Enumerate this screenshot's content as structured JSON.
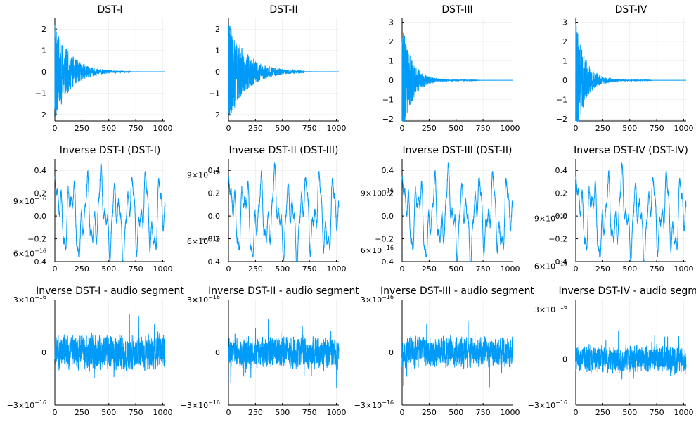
{
  "series_color": "#009af9",
  "chart_data": [
    {
      "type": "line",
      "title": "DST-I",
      "x_range": [
        0,
        1023
      ],
      "xlim": [
        0,
        1023
      ],
      "ylim": [
        -2.3,
        2.5
      ],
      "x_ticks": [
        {
          "label": "0",
          "value": 0
        },
        {
          "label": "250",
          "value": 250
        },
        {
          "label": "500",
          "value": 500
        },
        {
          "label": "750",
          "value": 750
        },
        {
          "label": "1000",
          "value": 1000
        }
      ],
      "y_ticks": [
        {
          "label": "−2",
          "value": -2
        },
        {
          "label": "−1",
          "value": -1
        },
        {
          "label": "0",
          "value": 0
        },
        {
          "label": "1",
          "value": 1
        },
        {
          "label": "2",
          "value": 2
        }
      ],
      "signal": {
        "kind": "spectrum",
        "seed": 11,
        "peak": 2.3,
        "decay": 140
      }
    },
    {
      "type": "line",
      "title": "DST-II",
      "x_range": [
        0,
        1023
      ],
      "xlim": [
        0,
        1023
      ],
      "ylim": [
        -2.3,
        2.5
      ],
      "x_ticks": [
        {
          "label": "0",
          "value": 0
        },
        {
          "label": "250",
          "value": 250
        },
        {
          "label": "500",
          "value": 500
        },
        {
          "label": "750",
          "value": 750
        },
        {
          "label": "1000",
          "value": 1000
        }
      ],
      "y_ticks": [
        {
          "label": "−2",
          "value": -2
        },
        {
          "label": "−1",
          "value": -1
        },
        {
          "label": "0",
          "value": 0
        },
        {
          "label": "1",
          "value": 1
        },
        {
          "label": "2",
          "value": 2
        }
      ],
      "signal": {
        "kind": "spectrum",
        "seed": 23,
        "peak": 2.3,
        "decay": 170
      }
    },
    {
      "type": "line",
      "title": "DST-III",
      "x_range": [
        0,
        1023
      ],
      "xlim": [
        0,
        1023
      ],
      "ylim": [
        -2.1,
        3.2
      ],
      "x_ticks": [
        {
          "label": "0",
          "value": 0
        },
        {
          "label": "250",
          "value": 250
        },
        {
          "label": "500",
          "value": 500
        },
        {
          "label": "750",
          "value": 750
        },
        {
          "label": "1000",
          "value": 1000
        }
      ],
      "y_ticks": [
        {
          "label": "−2",
          "value": -2
        },
        {
          "label": "−1",
          "value": -1
        },
        {
          "label": "0",
          "value": 0
        },
        {
          "label": "1",
          "value": 1
        },
        {
          "label": "2",
          "value": 2
        },
        {
          "label": "3",
          "value": 3
        }
      ],
      "signal": {
        "kind": "spectrum",
        "seed": 37,
        "peak": 3.0,
        "decay": 90
      }
    },
    {
      "type": "line",
      "title": "DST-IV",
      "x_range": [
        0,
        1023
      ],
      "xlim": [
        0,
        1023
      ],
      "ylim": [
        -2.1,
        3.2
      ],
      "x_ticks": [
        {
          "label": "0",
          "value": 0
        },
        {
          "label": "250",
          "value": 250
        },
        {
          "label": "500",
          "value": 500
        },
        {
          "label": "750",
          "value": 750
        },
        {
          "label": "1000",
          "value": 1000
        }
      ],
      "y_ticks": [
        {
          "label": "−2",
          "value": -2
        },
        {
          "label": "−1",
          "value": -1
        },
        {
          "label": "0",
          "value": 0
        },
        {
          "label": "1",
          "value": 1
        },
        {
          "label": "2",
          "value": 2
        },
        {
          "label": "3",
          "value": 3
        }
      ],
      "signal": {
        "kind": "spectrum",
        "seed": 41,
        "peak": 3.0,
        "decay": 90
      }
    },
    {
      "type": "line",
      "title": "Inverse DST-I (DST-I)",
      "x_range": [
        0,
        1023
      ],
      "xlim": [
        0,
        1023
      ],
      "ylim": [
        -0.4,
        0.5
      ],
      "x_ticks": [
        {
          "label": "0",
          "value": 0
        },
        {
          "label": "250",
          "value": 250
        },
        {
          "label": "500",
          "value": 500
        },
        {
          "label": "750",
          "value": 750
        },
        {
          "label": "1000",
          "value": 1000
        }
      ],
      "y_ticks": [
        {
          "label": "−0.4",
          "value": -0.4
        },
        {
          "label": "−0.2",
          "value": -0.2
        },
        {
          "label": "0.0",
          "value": 0
        },
        {
          "label": "0.2",
          "value": 0.2
        },
        {
          "label": "0.4",
          "value": 0.4
        }
      ],
      "extra_labels": [
        {
          "base": "9×10",
          "exp": "−16",
          "value": 0.13
        },
        {
          "base": "6×10",
          "exp": "−16",
          "value": -0.33
        }
      ],
      "signal": {
        "kind": "audio",
        "seed": 5
      }
    },
    {
      "type": "line",
      "title": "Inverse DST-II (DST-III)",
      "x_range": [
        0,
        1023
      ],
      "xlim": [
        0,
        1023
      ],
      "ylim": [
        -0.4,
        0.5
      ],
      "x_ticks": [
        {
          "label": "0",
          "value": 0
        },
        {
          "label": "250",
          "value": 250
        },
        {
          "label": "500",
          "value": 500
        },
        {
          "label": "750",
          "value": 750
        },
        {
          "label": "1000",
          "value": 1000
        }
      ],
      "y_ticks": [
        {
          "label": "−0.4",
          "value": -0.4
        },
        {
          "label": "−0.2",
          "value": -0.2
        },
        {
          "label": "0.0",
          "value": 0
        },
        {
          "label": "0.2",
          "value": 0.2
        },
        {
          "label": "0.4",
          "value": 0.4
        }
      ],
      "extra_labels": [
        {
          "base": "9×10",
          "exp": "−16",
          "value": 0.36
        },
        {
          "base": "6×10",
          "exp": "−16",
          "value": -0.22
        }
      ],
      "signal": {
        "kind": "audio",
        "seed": 5
      }
    },
    {
      "type": "line",
      "title": "Inverse DST-III (DST-II)",
      "x_range": [
        0,
        1023
      ],
      "xlim": [
        0,
        1023
      ],
      "ylim": [
        -0.4,
        0.5
      ],
      "x_ticks": [
        {
          "label": "0",
          "value": 0
        },
        {
          "label": "250",
          "value": 250
        },
        {
          "label": "500",
          "value": 500
        },
        {
          "label": "750",
          "value": 750
        },
        {
          "label": "1000",
          "value": 1000
        }
      ],
      "y_ticks": [
        {
          "label": "−0.4",
          "value": -0.4
        },
        {
          "label": "−0.2",
          "value": -0.2
        },
        {
          "label": "0.0",
          "value": 0
        },
        {
          "label": "0.2",
          "value": 0.2
        },
        {
          "label": "0.4",
          "value": 0.4
        }
      ],
      "extra_labels": [
        {
          "base": "9×10",
          "exp": "−16",
          "value": 0.2
        },
        {
          "base": "6×10",
          "exp": "−16",
          "value": -0.3
        }
      ],
      "signal": {
        "kind": "audio",
        "seed": 5
      }
    },
    {
      "type": "line",
      "title": "Inverse DST-IV (DST-IV)",
      "x_range": [
        0,
        1023
      ],
      "xlim": [
        0,
        1023
      ],
      "ylim": [
        -0.4,
        0.5
      ],
      "x_ticks": [
        {
          "label": "0",
          "value": 0
        },
        {
          "label": "250",
          "value": 250
        },
        {
          "label": "500",
          "value": 500
        },
        {
          "label": "750",
          "value": 750
        },
        {
          "label": "1000",
          "value": 1000
        }
      ],
      "y_ticks": [
        {
          "label": "−0.4",
          "value": -0.4
        },
        {
          "label": "−0.2",
          "value": -0.2
        },
        {
          "label": "0.0",
          "value": 0
        },
        {
          "label": "0.2",
          "value": 0.2
        },
        {
          "label": "0.4",
          "value": 0.4
        }
      ],
      "extra_labels": [
        {
          "base": "9×10",
          "exp": "−16",
          "value": -0.02
        },
        {
          "base": "6×10",
          "exp": "−16",
          "value": -0.44
        }
      ],
      "signal": {
        "kind": "audio",
        "seed": 5
      }
    },
    {
      "type": "line",
      "title": "Inverse DST-I - audio segment",
      "x_range": [
        0,
        1023
      ],
      "xlim": [
        0,
        1023
      ],
      "ylim": [
        -3.0,
        3.0
      ],
      "x_ticks": [
        {
          "label": "0",
          "value": 0
        },
        {
          "label": "250",
          "value": 250
        },
        {
          "label": "500",
          "value": 500
        },
        {
          "label": "750",
          "value": 750
        },
        {
          "label": "1000",
          "value": 1000
        }
      ],
      "y_ticks": [
        {
          "label": "0",
          "value": 0
        }
      ],
      "extra_labels": [
        {
          "base": "3×10",
          "exp": "−16",
          "value": 3.0
        },
        {
          "base": "−3×10",
          "exp": "−16",
          "value": -3.0
        }
      ],
      "signal": {
        "kind": "noise",
        "seed": 71,
        "amp": 2.2
      }
    },
    {
      "type": "line",
      "title": "Inverse DST-II - audio segment",
      "x_range": [
        0,
        1023
      ],
      "xlim": [
        0,
        1023
      ],
      "ylim": [
        -3.0,
        3.0
      ],
      "x_ticks": [
        {
          "label": "0",
          "value": 0
        },
        {
          "label": "250",
          "value": 250
        },
        {
          "label": "500",
          "value": 500
        },
        {
          "label": "750",
          "value": 750
        },
        {
          "label": "1000",
          "value": 1000
        }
      ],
      "y_ticks": [
        {
          "label": "0",
          "value": 0
        }
      ],
      "extra_labels": [
        {
          "base": "3×10",
          "exp": "−16",
          "value": 3.0
        },
        {
          "base": "−3×10",
          "exp": "−16",
          "value": -3.0
        }
      ],
      "signal": {
        "kind": "noise",
        "seed": 83,
        "amp": 2.0
      }
    },
    {
      "type": "line",
      "title": "Inverse DST-III - audio segment",
      "x_range": [
        0,
        1023
      ],
      "xlim": [
        0,
        1023
      ],
      "ylim": [
        -3.0,
        3.0
      ],
      "x_ticks": [
        {
          "label": "0",
          "value": 0
        },
        {
          "label": "250",
          "value": 250
        },
        {
          "label": "500",
          "value": 500
        },
        {
          "label": "750",
          "value": 750
        },
        {
          "label": "1000",
          "value": 1000
        }
      ],
      "y_ticks": [
        {
          "label": "0",
          "value": 0
        }
      ],
      "extra_labels": [
        {
          "base": "3×10",
          "exp": "−16",
          "value": 3.0
        },
        {
          "base": "−3×10",
          "exp": "−16",
          "value": -3.0
        }
      ],
      "signal": {
        "kind": "noise",
        "seed": 97,
        "amp": 1.9
      }
    },
    {
      "type": "line",
      "title": "Inverse DST-IV - audio segme",
      "x_range": [
        0,
        1023
      ],
      "xlim": [
        0,
        1023
      ],
      "ylim": [
        -2.8,
        3.6
      ],
      "x_ticks": [
        {
          "label": "0",
          "value": 0
        },
        {
          "label": "250",
          "value": 250
        },
        {
          "label": "500",
          "value": 500
        },
        {
          "label": "750",
          "value": 750
        },
        {
          "label": "1000",
          "value": 1000
        }
      ],
      "y_ticks": [
        {
          "label": "0",
          "value": 0
        }
      ],
      "extra_labels": [
        {
          "base": "3×10",
          "exp": "−16",
          "value": 3.0
        },
        {
          "base": "−3×10",
          "exp": "−16",
          "value": -2.8
        }
      ],
      "signal": {
        "kind": "noise",
        "seed": 109,
        "amp": 1.8
      }
    }
  ]
}
